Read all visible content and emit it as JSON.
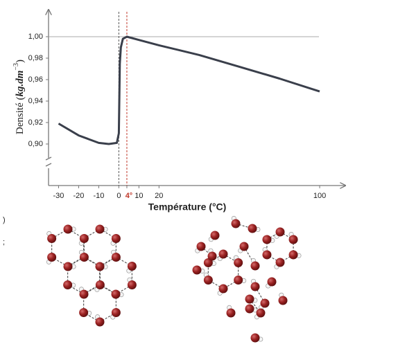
{
  "chart_data": {
    "type": "line",
    "y_label": "Densité",
    "y_unit": "kg.dm",
    "y_unit_exponent": "−3",
    "x_label": "Température (°C)",
    "x": [
      -30,
      -20,
      -10,
      -5,
      -1,
      0,
      0.5,
      1,
      2,
      4,
      10,
      20,
      40,
      60,
      80,
      100
    ],
    "series": [
      {
        "name": "Densité",
        "color": "#3a3f4b",
        "values": [
          0.919,
          0.908,
          0.901,
          0.9,
          0.901,
          0.91,
          0.975,
          0.99,
          0.998,
          1.0,
          0.997,
          0.992,
          0.983,
          0.972,
          0.961,
          0.949
        ]
      }
    ],
    "xlim": [
      -35,
      110
    ],
    "ylim": [
      0.88,
      1.02
    ],
    "xticks": [
      -30,
      -20,
      -10,
      0,
      {
        "value": 4,
        "label": "4°"
      },
      10,
      20,
      100
    ],
    "yticks": [
      {
        "value": 0.9,
        "label": "0,90"
      },
      {
        "value": 0.92,
        "label": "0,92"
      },
      {
        "value": 0.94,
        "label": "0,94"
      },
      {
        "value": 0.96,
        "label": "0,96"
      },
      {
        "value": 0.98,
        "label": "0,98"
      },
      {
        "value": 1.0,
        "label": "1,00"
      }
    ],
    "vlines": [
      {
        "value": 0,
        "color": "#555555"
      },
      {
        "value": 4,
        "color": "#c0392b"
      }
    ],
    "hlines": [
      1.0
    ],
    "fragments": [
      ")",
      ";"
    ]
  }
}
